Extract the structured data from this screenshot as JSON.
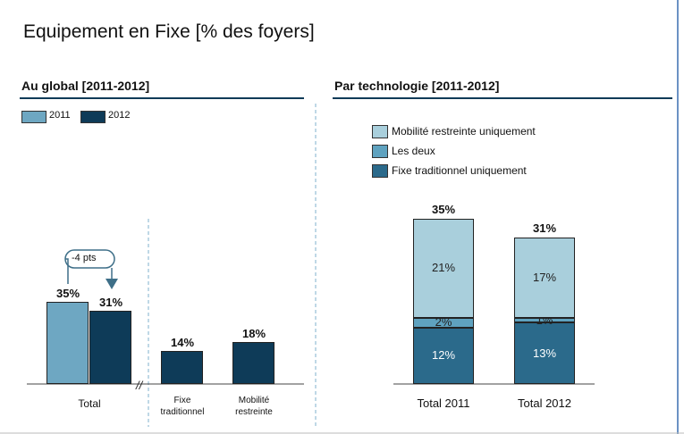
{
  "title": "Equipement en Fixe [% des foyers]",
  "chart_data": [
    {
      "type": "bar",
      "title": "Au global [2011-2012]",
      "categories": [
        "Total",
        "Fixe traditionnel",
        "Mobilité restreinte"
      ],
      "series": [
        {
          "name": "2011",
          "color": "#6ea7c2",
          "values": [
            35,
            null,
            null
          ],
          "value_labels": [
            "35%",
            null,
            null
          ]
        },
        {
          "name": "2012",
          "color": "#0e3b58",
          "values": [
            31,
            14,
            18
          ],
          "value_labels": [
            "31%",
            "14%",
            "18%"
          ]
        }
      ],
      "annotation": "-4 pts"
    },
    {
      "type": "stacked_bar",
      "title": "Par technologie [2011-2012]",
      "categories": [
        "Total 2011",
        "Total 2012"
      ],
      "series": [
        {
          "name": "Fixe traditionnel uniquement",
          "color": "#2b6a8b",
          "values": [
            12,
            13
          ],
          "value_labels": [
            "12%",
            "13%"
          ]
        },
        {
          "name": "Les deux",
          "color": "#5fa2bf",
          "values": [
            2,
            1
          ],
          "value_labels": [
            "2%",
            "1%"
          ]
        },
        {
          "name": "Mobilité restreinte uniquement",
          "color": "#a9cfdc",
          "values": [
            21,
            17
          ],
          "value_labels": [
            "21%",
            "17%"
          ]
        }
      ],
      "totals": [
        35,
        31
      ],
      "total_labels": [
        "35%",
        "31%"
      ]
    }
  ]
}
